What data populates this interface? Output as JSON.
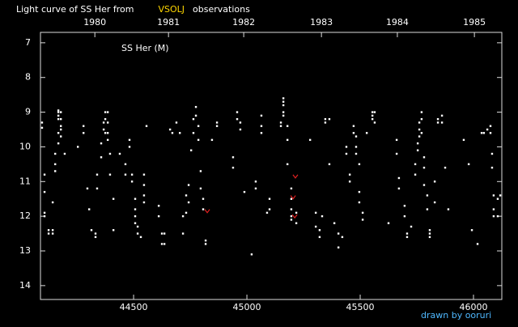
{
  "chart_data": {
    "type": "scatter",
    "title": [
      {
        "text": "Light curve of SS Her from",
        "color": "#ffffff"
      },
      {
        "text": "VSOLJ",
        "color": "#ffd700"
      },
      {
        "text": "observations",
        "color": "#ffffff"
      }
    ],
    "annotation": "SS Her (M)",
    "credit": "drawn by ooruri",
    "xlim": [
      44089,
      46125
    ],
    "xticks": [
      44500,
      45000,
      45500,
      46000
    ],
    "x2ticks": [
      {
        "value": 44329,
        "label": "1980"
      },
      {
        "value": 44654,
        "label": "1981"
      },
      {
        "value": 44986,
        "label": "1982"
      },
      {
        "value": 45329,
        "label": "1983"
      },
      {
        "value": 45664,
        "label": "1984"
      },
      {
        "value": 46004,
        "label": "1985"
      }
    ],
    "ylim": [
      6.7,
      14.4
    ],
    "y_inverted": true,
    "yticks": [
      7,
      8,
      9,
      10,
      11,
      12,
      13,
      14
    ],
    "series": [
      {
        "color": "#ffffff",
        "marker": "dot",
        "x": [
          44096,
          44096,
          44107,
          44107,
          44107,
          44107,
          44125,
          44125,
          44143,
          44143,
          44143,
          44154,
          44154,
          44154,
          44168,
          44168,
          44168,
          44168,
          44168,
          44168,
          44179,
          44179,
          44179,
          44179,
          44179,
          44196,
          44254,
          44279,
          44279,
          44296,
          44304,
          44314,
          44332,
          44332,
          44339,
          44339,
          44357,
          44357,
          44368,
          44368,
          44375,
          44375,
          44375,
          44386,
          44386,
          44386,
          44386,
          44396,
          44396,
          44411,
          44411,
          44439,
          44464,
          44464,
          44482,
          44482,
          44493,
          44493,
          44507,
          44507,
          44507,
          44507,
          44518,
          44518,
          44532,
          44546,
          44546,
          44546,
          44546,
          44557,
          44611,
          44611,
          44625,
          44625,
          44636,
          44636,
          44661,
          44671,
          44689,
          44704,
          44718,
          44718,
          44732,
          44732,
          44743,
          44743,
          44754,
          44764,
          44764,
          44775,
          44775,
          44786,
          44786,
          44796,
          44796,
          44807,
          44807,
          44818,
          44818,
          44846,
          44868,
          44868,
          44939,
          44939,
          44957,
          44957,
          44971,
          44971,
          44989,
          45021,
          45039,
          45039,
          45064,
          45064,
          45064,
          45089,
          45100,
          45100,
          45150,
          45150,
          45161,
          45161,
          45161,
          45161,
          45161,
          45179,
          45179,
          45179,
          45196,
          45196,
          45196,
          45196,
          45196,
          45218,
          45218,
          45279,
          45304,
          45304,
          45321,
          45321,
          45332,
          45346,
          45346,
          45364,
          45364,
          45386,
          45404,
          45404,
          45421,
          45439,
          45439,
          45454,
          45454,
          45471,
          45471,
          45482,
          45482,
          45482,
          45496,
          45496,
          45496,
          45511,
          45511,
          45529,
          45554,
          45554,
          45554,
          45564,
          45564,
          45625,
          45661,
          45661,
          45671,
          45671,
          45696,
          45696,
          45707,
          45707,
          45725,
          45743,
          45743,
          45754,
          45754,
          45761,
          45761,
          45761,
          45771,
          45771,
          45771,
          45782,
          45782,
          45782,
          45796,
          45796,
          45807,
          45807,
          45807,
          45829,
          45829,
          45843,
          45843,
          45861,
          45861,
          45875,
          45889,
          45957,
          45979,
          45993,
          46018,
          46036,
          46046,
          46061,
          46075,
          46075,
          46082,
          46082,
          46089,
          46089,
          46089,
          46107,
          46107,
          46118
        ],
        "values": [
          9.3,
          9.45,
          10.8,
          11.3,
          11.9,
          12.0,
          12.4,
          12.5,
          12.4,
          12.5,
          11.6,
          10.5,
          10.7,
          10.2,
          9.9,
          9.6,
          9.2,
          9.1,
          9.0,
          8.95,
          9.0,
          9.2,
          9.4,
          9.5,
          9.7,
          10.2,
          10.0,
          9.4,
          9.6,
          11.2,
          11.8,
          12.4,
          12.5,
          12.6,
          11.2,
          10.8,
          9.9,
          10.3,
          9.5,
          9.3,
          9.0,
          9.2,
          9.6,
          9.0,
          9.3,
          9.6,
          9.8,
          10.2,
          10.8,
          11.5,
          12.4,
          10.2,
          10.5,
          10.8,
          9.8,
          10.0,
          10.8,
          11.0,
          11.5,
          11.8,
          12.0,
          12.2,
          12.3,
          12.5,
          12.6,
          11.1,
          10.8,
          11.4,
          11.6,
          9.4,
          11.7,
          12.0,
          12.5,
          12.8,
          12.8,
          12.5,
          9.5,
          9.6,
          9.3,
          9.6,
          12.0,
          12.5,
          11.4,
          11.9,
          11.1,
          11.6,
          10.1,
          9.6,
          9.2,
          8.85,
          9.1,
          9.4,
          9.8,
          10.7,
          11.2,
          11.5,
          11.8,
          12.7,
          12.8,
          9.8,
          9.3,
          9.4,
          10.3,
          10.6,
          9.0,
          9.2,
          9.3,
          9.5,
          11.3,
          13.1,
          11.2,
          11.0,
          9.1,
          9.4,
          9.6,
          11.9,
          11.8,
          11.5,
          9.4,
          9.3,
          8.6,
          8.7,
          8.8,
          9.0,
          9.1,
          9.4,
          9.8,
          10.5,
          11.2,
          11.5,
          11.8,
          12.0,
          12.1,
          11.9,
          12.2,
          9.8,
          11.9,
          12.3,
          12.4,
          12.6,
          12.0,
          9.3,
          9.2,
          9.2,
          10.5,
          12.2,
          12.5,
          12.9,
          12.6,
          10.0,
          10.2,
          11.0,
          10.8,
          9.4,
          9.6,
          9.7,
          10.0,
          10.2,
          10.5,
          11.3,
          11.6,
          11.9,
          12.1,
          9.6,
          9.0,
          9.1,
          9.2,
          9.0,
          9.3,
          12.2,
          9.8,
          10.2,
          10.9,
          11.2,
          11.7,
          12.0,
          12.5,
          12.6,
          12.3,
          10.5,
          10.8,
          9.9,
          10.1,
          9.5,
          9.3,
          9.7,
          9.0,
          9.2,
          9.6,
          10.3,
          10.6,
          11.1,
          11.4,
          11.8,
          12.4,
          12.6,
          12.5,
          11.0,
          11.6,
          9.2,
          9.3,
          9.1,
          9.3,
          10.6,
          11.8,
          9.8,
          10.5,
          12.4,
          12.8,
          9.6,
          9.6,
          9.5,
          9.4,
          9.6,
          10.2,
          10.6,
          11.4,
          11.8,
          12.0,
          12.0,
          11.5,
          11.4
        ]
      },
      {
        "color": "#e02020",
        "marker": "v",
        "x": [
          44825,
          45204,
          45211,
          45214
        ],
        "values": [
          11.85,
          11.45,
          12.0,
          10.85
        ]
      }
    ]
  }
}
